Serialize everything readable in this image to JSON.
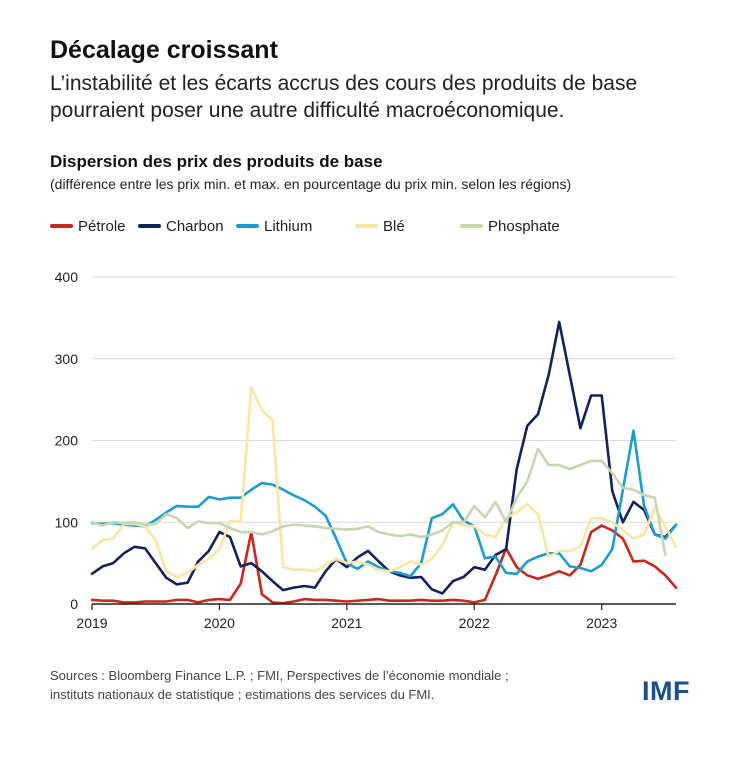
{
  "header": {
    "title": "Décalage croissant",
    "subtitle": "L’instabilité et les écarts accrus des cours des produits de base pourraient poser une autre difficulté macroéconomique."
  },
  "chart_data": {
    "type": "line",
    "title": "Dispersion des prix des produits de base",
    "subtitle": "(différence entre les prix min. et max. en pourcentage du prix min. selon les régions)",
    "xlabel": "",
    "ylabel": "",
    "ylim": [
      0,
      400
    ],
    "yticks": [
      "0",
      "100",
      "200",
      "300",
      "400"
    ],
    "xticks": [
      {
        "label": "2019",
        "value": 2019
      },
      {
        "label": "2020",
        "value": 2020
      },
      {
        "label": "2021",
        "value": 2021
      },
      {
        "label": "2022",
        "value": 2022
      },
      {
        "label": "2023",
        "value": 2023
      }
    ],
    "x_start": 2019,
    "x_step_months": 1,
    "grid": true,
    "legend_position": "top",
    "series": [
      {
        "name": "Pétrole",
        "color": "#c8281e",
        "values": [
          5,
          4,
          4,
          2,
          2,
          3,
          3,
          3,
          5,
          5,
          2,
          5,
          6,
          5,
          25,
          88,
          12,
          2,
          1,
          3,
          6,
          5,
          5,
          4,
          3,
          4,
          5,
          6,
          4,
          4,
          4,
          5,
          4,
          4,
          5,
          4,
          2,
          5,
          35,
          68,
          45,
          35,
          31,
          35,
          40,
          35,
          48,
          88,
          96,
          90,
          80,
          52,
          53,
          46,
          35,
          20
        ]
      },
      {
        "name": "Charbon",
        "color": "#14225c",
        "values": [
          37,
          46,
          50,
          62,
          70,
          68,
          50,
          32,
          24,
          26,
          52,
          65,
          88,
          82,
          46,
          50,
          40,
          28,
          17,
          20,
          22,
          20,
          40,
          55,
          45,
          57,
          65,
          52,
          40,
          35,
          32,
          33,
          18,
          13,
          28,
          33,
          45,
          42,
          60,
          67,
          165,
          218,
          232,
          280,
          345,
          280,
          215,
          255,
          255,
          138,
          100,
          125,
          115,
          85,
          82,
          97
        ]
      },
      {
        "name": "Lithium",
        "color": "#1f9bd4",
        "values": [
          99,
          98,
          99,
          97,
          96,
          95,
          103,
          112,
          120,
          119,
          119,
          131,
          128,
          130,
          130,
          140,
          148,
          146,
          140,
          133,
          127,
          119,
          108,
          80,
          50,
          43,
          52,
          45,
          40,
          38,
          34,
          50,
          105,
          110,
          122,
          102,
          95,
          56,
          58,
          38,
          37,
          52,
          58,
          62,
          62,
          46,
          44,
          40,
          48,
          67,
          140,
          212,
          120,
          85,
          80,
          97
        ]
      },
      {
        "name": "Blé",
        "color": "#f8e6a8",
        "values": [
          68,
          78,
          80,
          98,
          98,
          95,
          78,
          40,
          33,
          38,
          48,
          55,
          67,
          101,
          101,
          265,
          237,
          225,
          45,
          42,
          42,
          40,
          48,
          55,
          50,
          52,
          48,
          42,
          40,
          45,
          52,
          48,
          55,
          72,
          100,
          96,
          95,
          85,
          82,
          105,
          112,
          122,
          110,
          58,
          65,
          65,
          70,
          105,
          105,
          100,
          90,
          80,
          85,
          118,
          95,
          70
        ]
      },
      {
        "name": "Phosphate",
        "color": "#c6d6b0",
        "values": [
          100,
          96,
          100,
          99,
          100,
          97,
          98,
          110,
          105,
          93,
          101,
          99,
          99,
          93,
          88,
          88,
          85,
          89,
          95,
          97,
          96,
          95,
          93,
          92,
          91,
          92,
          95,
          88,
          85,
          83,
          85,
          82,
          85,
          90,
          100,
          100,
          120,
          106,
          125,
          100,
          130,
          150,
          190,
          170,
          170,
          165,
          170,
          175,
          175,
          160,
          142,
          140,
          133,
          130,
          60
        ]
      }
    ]
  },
  "footer": {
    "source_line1": "Sources : Bloomberg Finance L.P. ; FMI, Perspectives de l’économie mondiale ;",
    "source_line2": "instituts nationaux de statistique ; estimations des services du FMI.",
    "logo": "IMF"
  }
}
